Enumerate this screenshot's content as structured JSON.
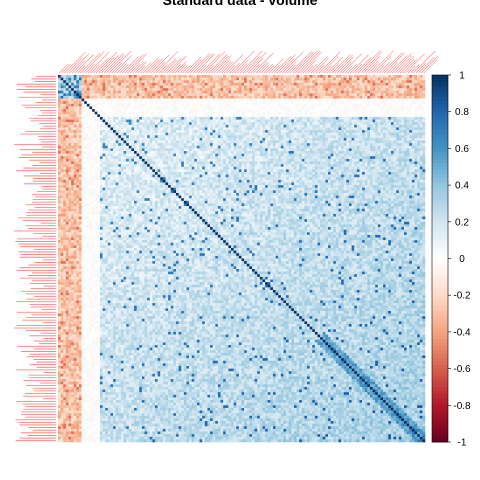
{
  "chart_data": {
    "type": "heatmap",
    "title": "Standard data - volume",
    "matrix_kind": "correlation",
    "variable_count": 140,
    "value_range": [
      -1,
      1
    ],
    "diagonal_value": 1,
    "tick_label_color": "#ff0000",
    "colorbar": {
      "position": "right",
      "ticks": [
        1,
        0.8,
        0.6,
        0.4,
        0.2,
        0,
        -0.2,
        -0.4,
        -0.6,
        -0.8,
        -1
      ],
      "tick_labels": [
        "1",
        "0.8",
        "0.6",
        "0.4",
        "0.2",
        "0",
        "-0.2",
        "-0.4",
        "-0.6",
        "-0.8",
        "-1"
      ]
    },
    "palette": [
      "#67001f",
      "#b2182b",
      "#d6604d",
      "#f4a582",
      "#fddbc7",
      "#ffffff",
      "#d1e5f0",
      "#92c5de",
      "#4393c3",
      "#2166ac",
      "#053061"
    ],
    "block_structure": {
      "outlier_variables": [
        0,
        1,
        2,
        3,
        4,
        5,
        6,
        7,
        8
      ],
      "outlier_mean_correlation": -0.15,
      "low_correlation_band": [
        9,
        15
      ],
      "mean_correlation_first_half": 0.1,
      "mean_correlation_second_half": 0.35
    }
  }
}
